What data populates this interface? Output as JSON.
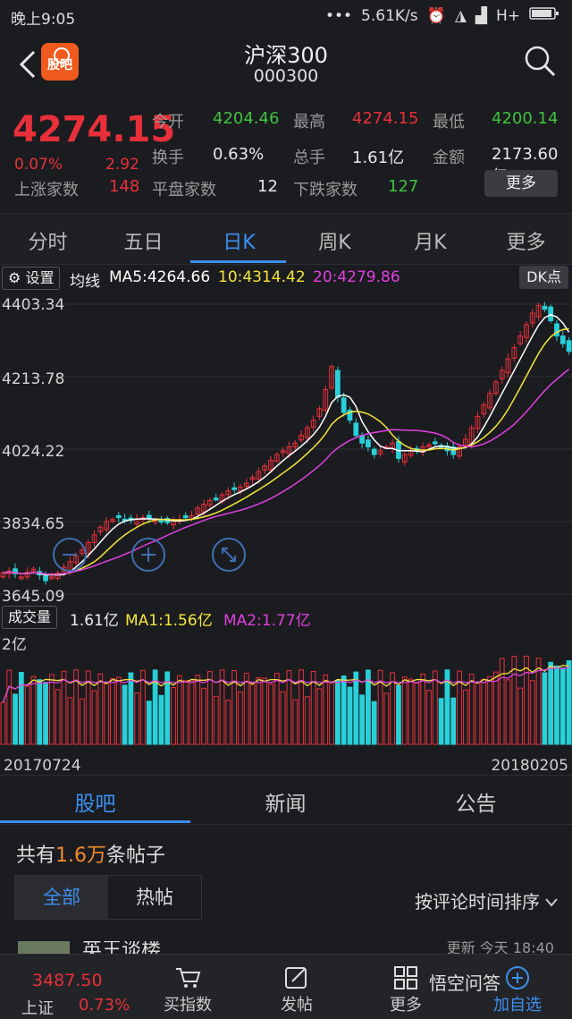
{
  "status_bar": {
    "time": "晚上9:05",
    "network_speed": "5.61K/s",
    "signal_type": "H+"
  },
  "header": {
    "title": "沪深300",
    "code": "000300",
    "logo_text": "股吧"
  },
  "quote": {
    "price": "4274.15",
    "change_pct": "0.07%",
    "change_abs": "2.92",
    "rows": [
      [
        {
          "label": "今开",
          "value": "4204.46",
          "color": "green"
        },
        {
          "label": "最高",
          "value": "4274.15",
          "color": "red"
        },
        {
          "label": "最低",
          "value": "4200.14",
          "color": "green"
        }
      ],
      [
        {
          "label": "换手",
          "value": "0.63%",
          "color": "white"
        },
        {
          "label": "总手",
          "value": "1.61亿",
          "color": "white"
        },
        {
          "label": "金额",
          "value": "2173.60亿",
          "color": "white"
        }
      ]
    ],
    "breadth": [
      {
        "label": "上涨家数",
        "value": "148",
        "color": "red"
      },
      {
        "label": "平盘家数",
        "value": "12",
        "color": "white"
      },
      {
        "label": "下跌家数",
        "value": "127",
        "color": "green"
      }
    ],
    "more_label": "更多"
  },
  "ktabs": [
    "分时",
    "五日",
    "日K",
    "周K",
    "月K",
    "更多"
  ],
  "active_ktab": 2,
  "ma_bar": {
    "settings_label": "设置",
    "prefix": "均线",
    "ma5": "MA5:4264.66",
    "ma10": "10:4314.42",
    "ma20": "20:4279.86",
    "dk_label": "DK点",
    "colors": {
      "ma5": "#ffffff",
      "ma10": "#f5e63a",
      "ma20": "#e040e0"
    }
  },
  "chart_data": {
    "type": "candlestick",
    "y_ticks": [
      "4403.34",
      "4213.78",
      "4024.22",
      "3834.65",
      "3645.09"
    ],
    "ylim": [
      3645.09,
      4403.34
    ],
    "x_start_label": "20170724",
    "x_end_label": "20180205",
    "close_path": [
      3700,
      3705,
      3698,
      3690,
      3702,
      3710,
      3695,
      3680,
      3690,
      3700,
      3715,
      3730,
      3745,
      3760,
      3780,
      3800,
      3820,
      3835,
      3840,
      3845,
      3840,
      3838,
      3842,
      3845,
      3843,
      3838,
      3835,
      3832,
      3836,
      3840,
      3845,
      3850,
      3870,
      3880,
      3890,
      3895,
      3905,
      3915,
      3920,
      3925,
      3935,
      3950,
      3965,
      3980,
      3995,
      4010,
      4020,
      4030,
      4040,
      4060,
      4080,
      4100,
      4130,
      4180,
      4240,
      4160,
      4120,
      4100,
      4060,
      4040,
      4030,
      4010,
      4020,
      4030,
      4040,
      4000,
      4010,
      4020,
      4025,
      4030,
      4035,
      4040,
      4030,
      4020,
      4010,
      4030,
      4050,
      4080,
      4110,
      4140,
      4170,
      4200,
      4230,
      4260,
      4290,
      4320,
      4350,
      4380,
      4400,
      4390,
      4360,
      4320,
      4300,
      4280
    ],
    "volume": {
      "label": "成交量",
      "value": "1.61亿",
      "ma1": "MA1:1.56亿",
      "ma2": "MA2:1.77亿",
      "y_tick": "2亿"
    }
  },
  "forum_tabs": [
    "股吧",
    "新闻",
    "公告"
  ],
  "active_forum_tab": 0,
  "posts": {
    "prefix": "共有",
    "count": "1.6万",
    "suffix": "条帖子"
  },
  "filters": [
    "全部",
    "热帖"
  ],
  "active_filter": 0,
  "sort_label": "按评论时间排序",
  "preview": {
    "name": "英王谈楼",
    "time": "更新 今天 18:40"
  },
  "bottom_nav": {
    "index_name": "上证",
    "index_value": "3487.50",
    "index_change": "0.73%",
    "items": [
      "买指数",
      "发帖",
      "更多",
      "加自选"
    ]
  },
  "watermark": "悟空问答"
}
